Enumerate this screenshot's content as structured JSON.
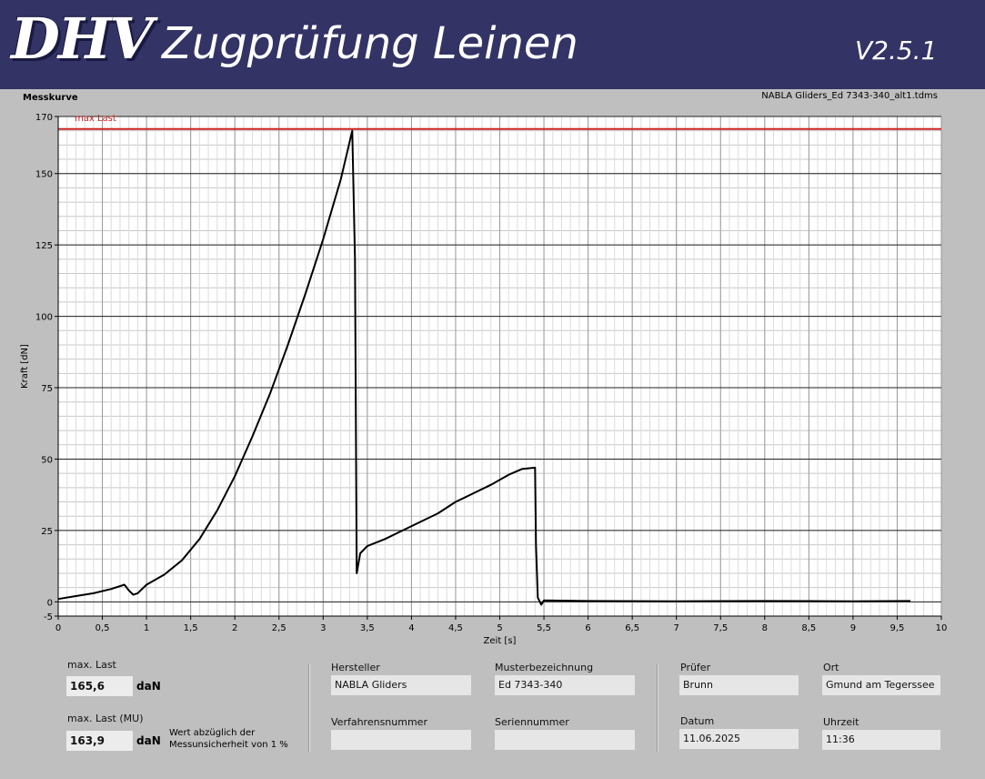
{
  "header": {
    "logo": "DHV",
    "title": "Zugprüfung Leinen",
    "version": "V2.5.1"
  },
  "chart_label": "Messkurve",
  "file_name": "NABLA Gliders_Ed 7343-340_alt1.tdms",
  "chart_data": {
    "type": "line",
    "xlabel": "Zeit [s]",
    "ylabel": "Kraft [dN]",
    "xlim": [
      0,
      10
    ],
    "ylim": [
      -5,
      170
    ],
    "x_ticks": [
      0,
      0.5,
      1,
      1.5,
      2,
      2.5,
      3,
      3.5,
      4,
      4.5,
      5,
      5.5,
      6,
      6.5,
      7,
      7.5,
      8,
      8.5,
      9,
      9.5,
      10
    ],
    "x_tick_labels": [
      "0",
      "0,5",
      "1",
      "1,5",
      "2",
      "2,5",
      "3",
      "3,5",
      "4",
      "4,5",
      "5",
      "5,5",
      "6",
      "6,5",
      "7",
      "7,5",
      "8",
      "8,5",
      "9",
      "9,5",
      "10"
    ],
    "y_ticks": [
      -5,
      0,
      25,
      50,
      75,
      100,
      125,
      150,
      170
    ],
    "y_tick_labels": [
      "-5",
      "0",
      "25",
      "50",
      "75",
      "100",
      "125",
      "150",
      "170"
    ],
    "grid": true,
    "reference_line": {
      "name": "max Last",
      "y": 165.6,
      "color": "#cc2222"
    },
    "series": [
      {
        "color": "#000000",
        "x": [
          0,
          0.2,
          0.4,
          0.6,
          0.75,
          0.8,
          0.85,
          0.9,
          1.0,
          1.2,
          1.4,
          1.6,
          1.8,
          2.0,
          2.2,
          2.4,
          2.6,
          2.8,
          3.0,
          3.2,
          3.33,
          3.34,
          3.36,
          3.38,
          3.42,
          3.5,
          3.7,
          3.9,
          4.1,
          4.3,
          4.5,
          4.7,
          4.9,
          5.1,
          5.25,
          5.4,
          5.41,
          5.43,
          5.47,
          5.5,
          6.0,
          7.0,
          8.0,
          9.0,
          9.65
        ],
        "y": [
          1,
          2,
          3,
          4.5,
          6,
          4,
          2.5,
          3,
          6,
          9.5,
          14.5,
          22,
          32,
          44,
          58,
          73,
          90,
          108,
          127,
          148,
          165,
          150,
          120,
          10,
          17,
          19.5,
          22,
          25,
          28,
          31,
          35,
          38,
          41,
          44.5,
          46.5,
          47,
          20,
          1.5,
          -1,
          0.5,
          0.3,
          0.2,
          0.3,
          0.2,
          0.3
        ]
      }
    ]
  },
  "panel": {
    "max_last_label": "max. Last",
    "max_last_value": "165,6",
    "max_last_unit": "daN",
    "max_last_mu_label": "max. Last (MU)",
    "max_last_mu_value": "163,9",
    "max_last_mu_unit": "daN",
    "note_line1": "Wert abzüglich der",
    "note_line2": "Messunsicherheit von 1 %",
    "hersteller_label": "Hersteller",
    "hersteller_value": "NABLA Gliders",
    "musterbezeichnung_label": "Musterbezeichnung",
    "musterbezeichnung_value": "Ed 7343-340",
    "verfahrensnummer_label": "Verfahrensnummer",
    "verfahrensnummer_value": "",
    "seriennummer_label": "Seriennummer",
    "seriennummer_value": "",
    "pruefer_label": "Prüfer",
    "pruefer_value": "Brunn",
    "ort_label": "Ort",
    "ort_value": "Gmund am Tegerssee",
    "datum_label": "Datum",
    "datum_value": "11.06.2025",
    "uhrzeit_label": "Uhrzeit",
    "uhrzeit_value": "11:36"
  }
}
